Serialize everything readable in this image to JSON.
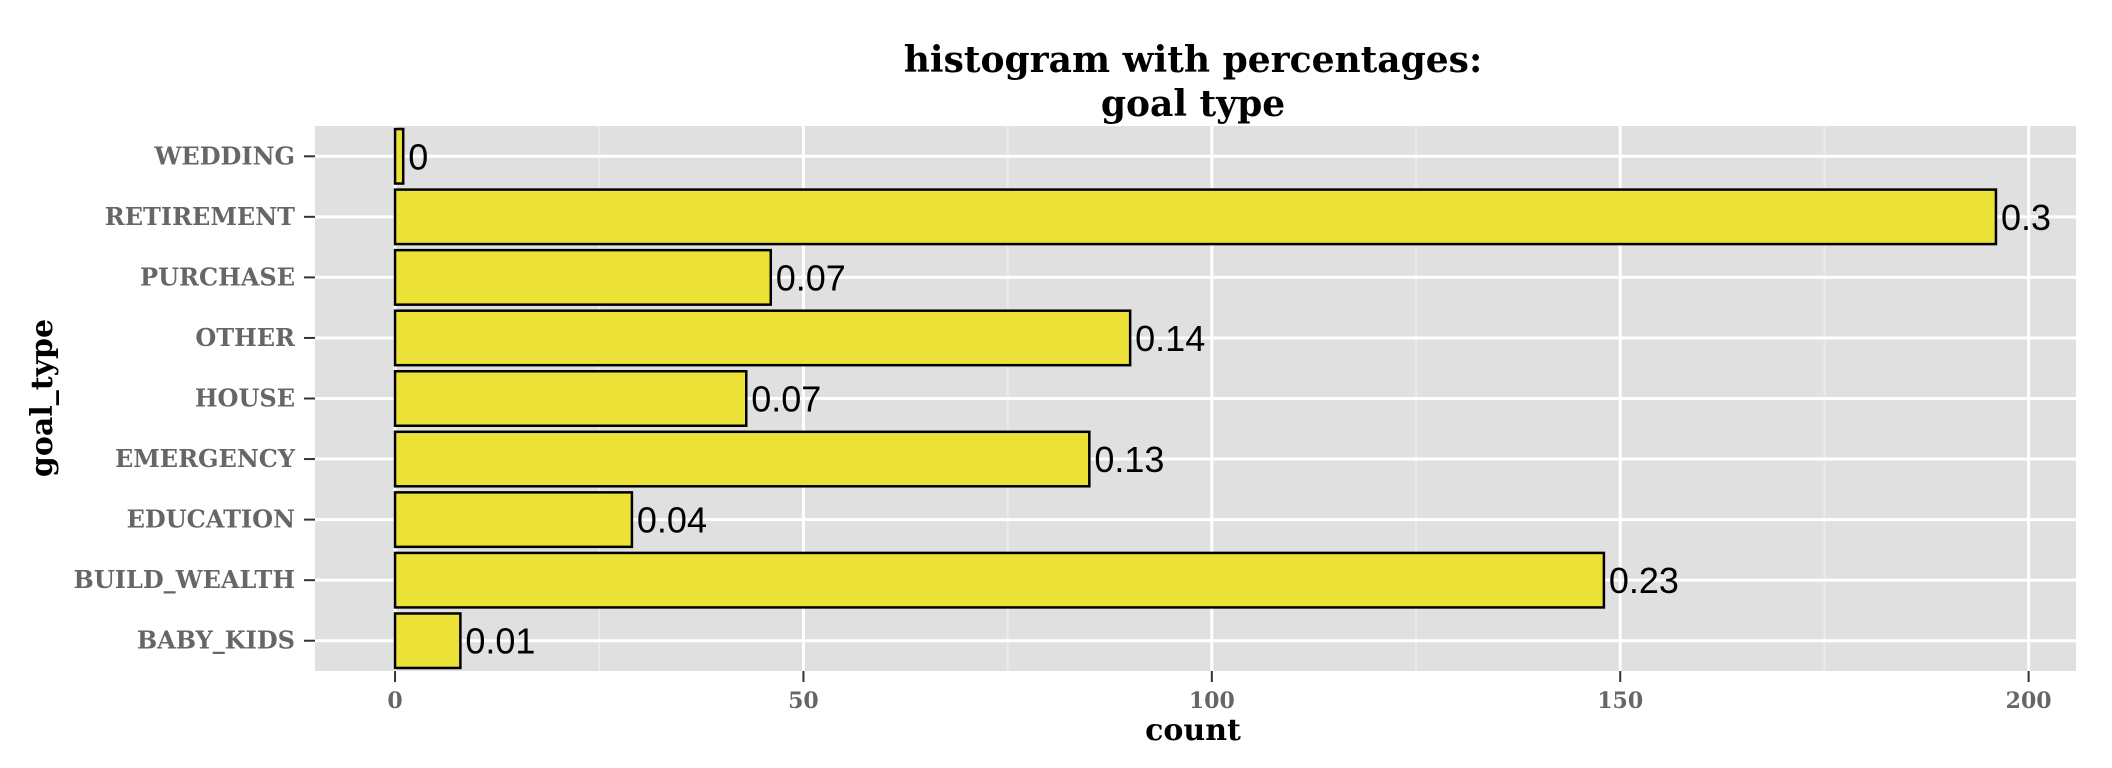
{
  "chart_data": {
    "type": "bar",
    "orientation": "horizontal",
    "title": "histogram with percentages:",
    "subtitle": "goal type",
    "xlabel": "count",
    "ylabel": "goal_type",
    "categories": [
      "BABY_KIDS",
      "BUILD_WEALTH",
      "EDUCATION",
      "EMERGENCY",
      "HOUSE",
      "OTHER",
      "PURCHASE",
      "RETIREMENT",
      "WEDDING"
    ],
    "values": [
      8,
      148,
      29,
      85,
      43,
      90,
      46,
      196,
      1
    ],
    "data_labels": [
      "0.01",
      "0.23",
      "0.04",
      "0.13",
      "0.07",
      "0.14",
      "0.07",
      "0.3",
      "0"
    ],
    "xticks": [
      "0",
      "50",
      "100",
      "150",
      "200"
    ],
    "xlim": [
      -9.8,
      205.8
    ],
    "grid": true,
    "colors": {
      "bar_fill": "#ECE136",
      "bar_stroke": "#000000",
      "panel_bg": "#E0E0E0",
      "grid_major": "#FFFFFF",
      "grid_minor": "#EBEBEB"
    }
  }
}
